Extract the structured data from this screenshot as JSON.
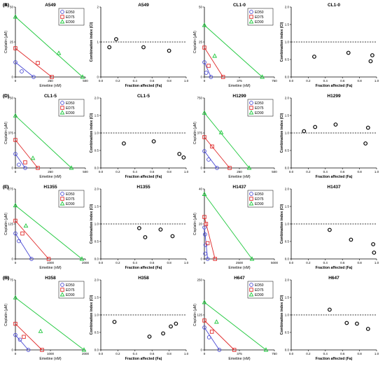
{
  "chart_data": [
    {
      "panel_label": "(A)",
      "type": "isobologram",
      "title": "A549",
      "xlabel": "Emetine (nM)",
      "ylabel": "Cisplatin (μM)",
      "xlim": [
        0,
        500
      ],
      "ylim": [
        0,
        50
      ],
      "xticks": [
        "0",
        "250",
        "500"
      ],
      "yticks": [
        "0",
        "25",
        "50"
      ],
      "legend": [
        "ED50",
        "ED75",
        "ED90"
      ],
      "legend_position": "top-right",
      "series": [
        {
          "name": "ED50",
          "line": [
            [
              0,
              10.5
            ],
            [
              130,
              0
            ]
          ],
          "point": [
            [
              45,
              4
            ]
          ]
        },
        {
          "name": "ED75",
          "line": [
            [
              0,
              20.5
            ],
            [
              260,
              0
            ]
          ],
          "point": [
            [
              160,
              10
            ]
          ]
        },
        {
          "name": "ED90",
          "line": [
            [
              0,
              43
            ],
            [
              480,
              0
            ]
          ],
          "point": [
            [
              310,
              17
            ]
          ]
        }
      ]
    },
    {
      "panel_label": "",
      "type": "scatter",
      "title": "A549",
      "xlabel": "Fraction affected (Fa)",
      "ylabel": "Combination index (CI)",
      "xlim": [
        0,
        1
      ],
      "ylim": [
        0,
        2
      ],
      "xticks": [
        "0.0",
        "0.2",
        "0.4",
        "0.6",
        "0.8",
        "1.0"
      ],
      "yticks": [
        "0",
        "1",
        "2"
      ],
      "reference_line": 1,
      "x": [
        0.1,
        0.18,
        0.5,
        0.8
      ],
      "y": [
        0.85,
        1.08,
        0.85,
        0.75
      ]
    },
    {
      "panel_label": "(B)",
      "type": "isobologram",
      "title": "CL1-0",
      "xlabel": "Emetine (nM)",
      "ylabel": "Cisplatin (μM)",
      "xlim": [
        0,
        750
      ],
      "ylim": [
        0,
        50
      ],
      "xticks": [
        "0",
        "375",
        "750"
      ],
      "yticks": [
        "0",
        "25",
        "50"
      ],
      "legend": [
        "ED50",
        "ED75",
        "ED90"
      ],
      "legend_position": "top-right",
      "series": [
        {
          "name": "ED50",
          "line": [
            [
              0,
              10.5
            ],
            [
              70,
              0
            ]
          ],
          "point": [
            [
              20,
              3
            ]
          ]
        },
        {
          "name": "ED75",
          "line": [
            [
              0,
              21
            ],
            [
              200,
              0
            ]
          ],
          "point": [
            [
              45,
              8
            ]
          ]
        },
        {
          "name": "ED90",
          "line": [
            [
              0,
              37
            ],
            [
              620,
              0
            ]
          ],
          "point": [
            [
              110,
              15
            ]
          ]
        }
      ]
    },
    {
      "panel_label": "",
      "type": "scatter",
      "title": "CL1-0",
      "xlabel": "Fraction affected (Fa)",
      "ylabel": "Combination index (CI)",
      "xlim": [
        0,
        1
      ],
      "ylim": [
        0,
        2
      ],
      "xticks": [
        "0.0",
        "0.2",
        "0.4",
        "0.6",
        "0.8",
        "1.0"
      ],
      "yticks": [
        "0.0",
        "0.5",
        "1.0",
        "1.5",
        "2.0"
      ],
      "reference_line": 1,
      "x": [
        0.27,
        0.67,
        0.93,
        0.95
      ],
      "y": [
        0.58,
        0.69,
        0.45,
        0.62
      ]
    },
    {
      "panel_label": "(C)",
      "type": "isobologram",
      "title": "CL1-5",
      "xlabel": "Emetine (nM)",
      "ylabel": "Cisplatin (μM)",
      "xlim": [
        0,
        500
      ],
      "ylim": [
        0,
        750
      ],
      "xticks": [
        "0",
        "250",
        "500"
      ],
      "yticks": [
        "0",
        "375",
        "750"
      ],
      "legend": [
        "ED50",
        "ED75",
        "ED90"
      ],
      "legend_position": "top-right",
      "series": [
        {
          "name": "ED50",
          "line": [
            [
              0,
              150
            ],
            [
              70,
              0
            ]
          ],
          "point": [
            [
              25,
              35
            ]
          ]
        },
        {
          "name": "ED75",
          "line": [
            [
              0,
              300
            ],
            [
              160,
              0
            ]
          ],
          "point": [
            [
              70,
              60
            ]
          ]
        },
        {
          "name": "ED90",
          "line": [
            [
              0,
              560
            ],
            [
              400,
              0
            ]
          ],
          "point": [
            [
              125,
              105
            ]
          ]
        }
      ]
    },
    {
      "panel_label": "",
      "type": "scatter",
      "title": "CL1-5",
      "xlabel": "Fraction affected (Fa)",
      "ylabel": "Combination index (CI)",
      "xlim": [
        0,
        1
      ],
      "ylim": [
        0,
        2
      ],
      "xticks": [
        "0.0",
        "0.2",
        "0.4",
        "0.6",
        "0.8",
        "1.0"
      ],
      "yticks": [
        "0.0",
        "0.5",
        "1.0",
        "1.5",
        "2.0"
      ],
      "reference_line": 1,
      "x": [
        0.27,
        0.62,
        0.92,
        0.97
      ],
      "y": [
        0.7,
        0.76,
        0.4,
        0.3
      ]
    },
    {
      "panel_label": "(D)",
      "type": "isobologram",
      "title": "H1299",
      "xlabel": "Emetine (nM)",
      "ylabel": "Cisplatin (μM)",
      "xlim": [
        0,
        500
      ],
      "ylim": [
        0,
        750
      ],
      "xticks": [
        "0",
        "250",
        "500"
      ],
      "yticks": [
        "0",
        "375",
        "750"
      ],
      "legend": [
        "ED50",
        "ED75",
        "ED90"
      ],
      "legend_position": "top-right",
      "series": [
        {
          "name": "ED50",
          "line": [
            [
              0,
              180
            ],
            [
              90,
              0
            ]
          ],
          "point": [
            [
              30,
              90
            ]
          ]
        },
        {
          "name": "ED75",
          "line": [
            [
              0,
              330
            ],
            [
              180,
              0
            ]
          ],
          "point": [
            [
              55,
              230
            ]
          ]
        },
        {
          "name": "ED90",
          "line": [
            [
              0,
              590
            ],
            [
              320,
              0
            ]
          ],
          "point": [
            [
              120,
              380
            ]
          ]
        }
      ]
    },
    {
      "panel_label": "",
      "type": "scatter",
      "title": "H1299",
      "xlabel": "Fraction affected (Fa)",
      "ylabel": "Combination index (CI)",
      "xlim": [
        0,
        1
      ],
      "ylim": [
        0,
        2
      ],
      "xticks": [
        "0.0",
        "0.2",
        "0.4",
        "0.6",
        "0.8",
        "1.0"
      ],
      "yticks": [
        "0.0",
        "0.5",
        "1.0",
        "1.5",
        "2.0"
      ],
      "reference_line": 1,
      "x": [
        0.15,
        0.28,
        0.52,
        0.87,
        0.9
      ],
      "y": [
        1.05,
        1.17,
        1.24,
        0.7,
        1.15
      ]
    },
    {
      "panel_label": "(E)",
      "type": "isobologram",
      "title": "H1355",
      "xlabel": "Emetine (nM)",
      "ylabel": "Cisplatin (μM)",
      "xlim": [
        0,
        2000
      ],
      "ylim": [
        0,
        275
      ],
      "xticks": [
        "0",
        "1000",
        "2000"
      ],
      "yticks": [
        "0",
        "125",
        "275"
      ],
      "legend": [
        "ED50",
        "ED75",
        "ED90"
      ],
      "legend_position": "top-right",
      "series": [
        {
          "name": "ED50",
          "line": [
            [
              0,
              100
            ],
            [
              460,
              0
            ]
          ],
          "point": [
            [
              100,
              70
            ]
          ]
        },
        {
          "name": "ED75",
          "line": [
            [
              0,
              150
            ],
            [
              950,
              0
            ]
          ],
          "point": [
            [
              200,
              100
            ]
          ]
        },
        {
          "name": "ED90",
          "line": [
            [
              0,
              210
            ],
            [
              1900,
              0
            ]
          ],
          "point": [
            [
              300,
              130
            ]
          ]
        }
      ]
    },
    {
      "panel_label": "",
      "type": "scatter",
      "title": "H1355",
      "xlabel": "Fraction affected (Fa)",
      "ylabel": "Combination index (CI)",
      "xlim": [
        0,
        1
      ],
      "ylim": [
        0,
        2
      ],
      "xticks": [
        "0.0",
        "0.2",
        "0.4",
        "0.6",
        "0.8",
        "1.0"
      ],
      "yticks": [
        "0.0",
        "0.5",
        "1.0",
        "1.5",
        "2.0"
      ],
      "reference_line": 1,
      "x": [
        0.45,
        0.52,
        0.7,
        0.84
      ],
      "y": [
        0.88,
        0.62,
        0.84,
        0.65
      ]
    },
    {
      "panel_label": "(F)",
      "type": "isobologram",
      "title": "H1437",
      "xlabel": "Emetine (nM)",
      "ylabel": "Cisplatin (μM)",
      "xlim": [
        0,
        5000
      ],
      "ylim": [
        0,
        40
      ],
      "xticks": [
        "0",
        "2500",
        "5000"
      ],
      "yticks": [
        "0",
        "20",
        "40"
      ],
      "legend": [
        "ED50",
        "ED75",
        "ED90"
      ],
      "legend_position": "top-right",
      "series": [
        {
          "name": "ED50",
          "line": [
            [
              0,
              18
            ],
            [
              230,
              0
            ]
          ],
          "point": [
            [
              40,
              14
            ],
            [
              80,
              8
            ],
            [
              60,
              3
            ]
          ]
        },
        {
          "name": "ED75",
          "line": [
            [
              0,
              24
            ],
            [
              760,
              0
            ]
          ],
          "point": [
            [
              120,
              20
            ],
            [
              230,
              9
            ]
          ]
        },
        {
          "name": "ED90",
          "line": [
            [
              0,
              37
            ],
            [
              3400,
              0
            ]
          ],
          "point": []
        }
      ]
    },
    {
      "panel_label": "",
      "type": "scatter",
      "title": "H1437",
      "xlabel": "Fraction affected (Fa)",
      "ylabel": "Combination index (CI)",
      "xlim": [
        0,
        1
      ],
      "ylim": [
        0,
        2
      ],
      "xticks": [
        "0.0",
        "0.2",
        "0.4",
        "0.6",
        "0.8",
        "1.0"
      ],
      "yticks": [
        "0.0",
        "0.5",
        "1.0",
        "1.5",
        "2.0"
      ],
      "reference_line": 1,
      "x": [
        0.45,
        0.7,
        0.96,
        0.97
      ],
      "y": [
        0.83,
        0.55,
        0.42,
        0.18
      ]
    },
    {
      "panel_label": "(G)",
      "type": "isobologram",
      "title": "H358",
      "xlabel": "Emetine (nM)",
      "ylabel": "Cisplatin (μM)",
      "xlim": [
        0,
        2000
      ],
      "ylim": [
        0,
        75
      ],
      "xticks": [
        "0",
        "1000",
        "2000"
      ],
      "yticks": [
        "0",
        "75"
      ],
      "legend": [
        "ED50",
        "ED75",
        "ED90"
      ],
      "legend_position": "top-right",
      "series": [
        {
          "name": "ED50",
          "line": [
            [
              0,
              16
            ],
            [
              370,
              0
            ]
          ],
          "point": [
            [
              130,
              11
            ]
          ]
        },
        {
          "name": "ED75",
          "line": [
            [
              0,
              28
            ],
            [
              760,
              0
            ]
          ],
          "point": [
            [
              240,
              14
            ]
          ]
        },
        {
          "name": "ED90",
          "line": [
            [
              0,
              56
            ],
            [
              1960,
              0
            ]
          ],
          "point": [
            [
              720,
              20
            ]
          ]
        }
      ]
    },
    {
      "panel_label": "",
      "type": "scatter",
      "title": "H358",
      "xlabel": "Fraction affected (Fa)",
      "ylabel": "Combination index (CI)",
      "xlim": [
        0,
        1
      ],
      "ylim": [
        0,
        2
      ],
      "xticks": [
        "0.0",
        "0.2",
        "0.4",
        "0.6",
        "0.8",
        "1.0"
      ],
      "yticks": [
        "0.0",
        "0.5",
        "1.0",
        "1.5",
        "2.0"
      ],
      "reference_line": 1,
      "x": [
        0.16,
        0.57,
        0.73,
        0.82,
        0.88
      ],
      "y": [
        0.8,
        0.38,
        0.47,
        0.67,
        0.75
      ]
    },
    {
      "panel_label": "(H)",
      "type": "isobologram",
      "title": "H647",
      "xlabel": "Emetine (nM)",
      "ylabel": "Cisplatin (μM)",
      "xlim": [
        0,
        750
      ],
      "ylim": [
        0,
        250
      ],
      "xticks": [
        "0",
        "375",
        "750"
      ],
      "yticks": [
        "0",
        "125",
        "250"
      ],
      "legend": [
        "ED50",
        "ED75",
        "ED90"
      ],
      "legend_position": "top-right",
      "series": [
        {
          "name": "ED50",
          "line": [
            [
              0,
              80
            ],
            [
              160,
              0
            ]
          ],
          "point": [
            [
              50,
              45
            ]
          ]
        },
        {
          "name": "ED75",
          "line": [
            [
              0,
              105
            ],
            [
              320,
              0
            ]
          ],
          "point": [
            [
              80,
              65
            ]
          ]
        },
        {
          "name": "ED90",
          "line": [
            [
              0,
              170
            ],
            [
              660,
              0
            ]
          ],
          "point": [
            [
              130,
              100
            ]
          ]
        }
      ]
    },
    {
      "panel_label": "",
      "type": "scatter",
      "title": "H647",
      "xlabel": "Fraction affected (Fa)",
      "ylabel": "Combination index (CI)",
      "xlim": [
        0,
        1
      ],
      "ylim": [
        0,
        2
      ],
      "xticks": [
        "0.0",
        "0.2",
        "0.4",
        "0.6",
        "0.8",
        "1.0"
      ],
      "yticks": [
        "0.0",
        "0.5",
        "1.0",
        "1.5",
        "2.0"
      ],
      "reference_line": 1,
      "x": [
        0.45,
        0.65,
        0.77,
        0.9
      ],
      "y": [
        1.15,
        0.77,
        0.75,
        0.6
      ]
    }
  ],
  "colors": {
    "ED50": "#4a4ad4",
    "ED75": "#e02a2a",
    "ED90": "#1ec83c",
    "axis": "#000000",
    "scatter_marker": "#000000"
  }
}
